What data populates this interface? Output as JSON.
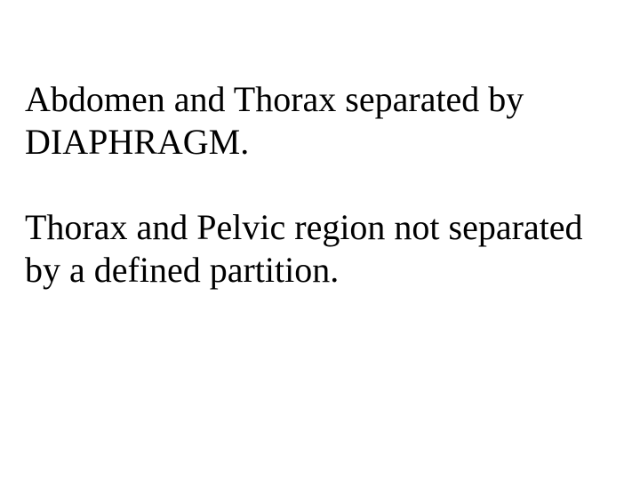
{
  "slide": {
    "background_color": "#ffffff",
    "text_color": "#000000",
    "font_family": "Times New Roman",
    "font_size_pt": 30,
    "paragraphs": [
      "Abdomen and Thorax separated by DIAPHRAGM.",
      "Thorax and Pelvic region not separated by a defined partition."
    ]
  }
}
